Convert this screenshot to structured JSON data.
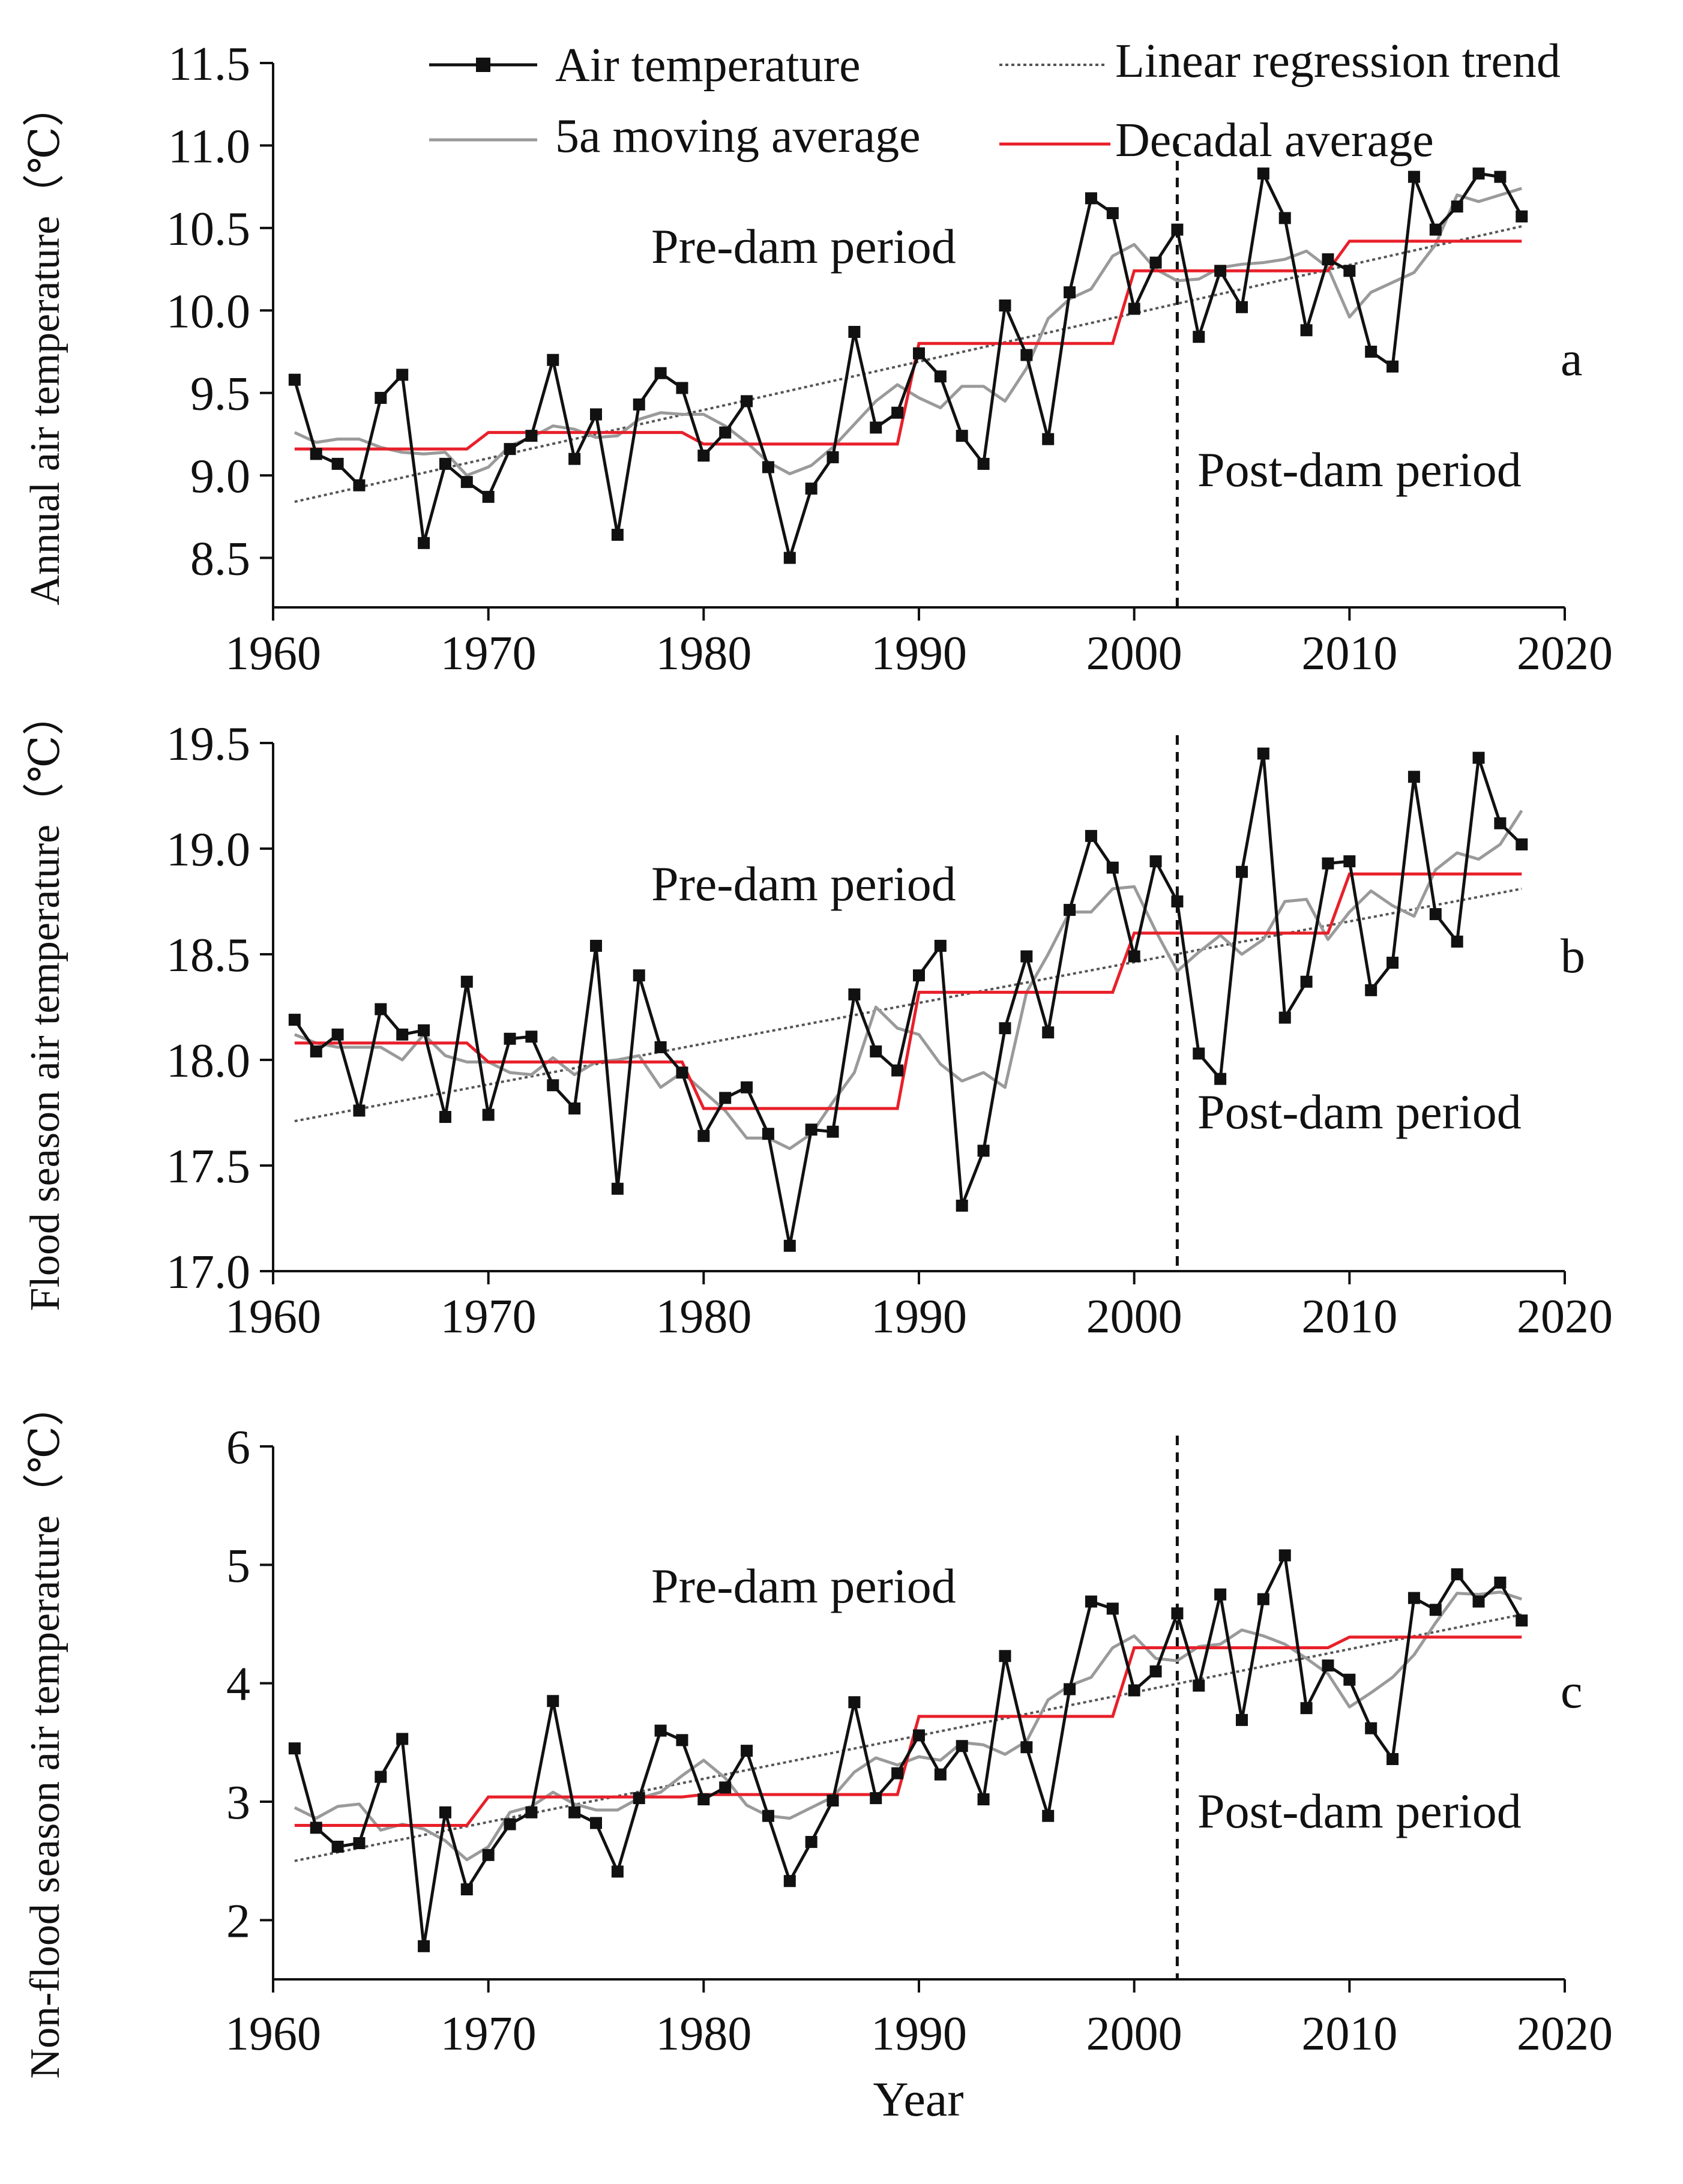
{
  "legend": {
    "items": [
      {
        "key": "air",
        "label": "Air temperature"
      },
      {
        "key": "moving",
        "label": "5a moving average"
      },
      {
        "key": "trend",
        "label": "Linear regression trend"
      },
      {
        "key": "decadal",
        "label": "Decadal average"
      }
    ]
  },
  "colors": {
    "air": "#111111",
    "moving": "#9a9a9a",
    "trend": "#555555",
    "decadal": "#e8202a",
    "axis": "#111111"
  },
  "chart_data": [
    {
      "type": "line",
      "panel": "a",
      "ylabel": "Annual air temperature（℃）",
      "xlabel": "",
      "xlim": [
        1960,
        2020
      ],
      "xticks": [
        1960,
        1970,
        1980,
        1990,
        2000,
        2010,
        2020
      ],
      "ylim": [
        8.2,
        11.5
      ],
      "yticks": [
        8.5,
        9.0,
        9.5,
        10.0,
        10.5,
        11.0,
        11.5
      ],
      "ytick_labels": [
        "8.5",
        "9.0",
        "9.5",
        "10.0",
        "10.5",
        "11.0",
        "11.5"
      ],
      "dam_year": 2002,
      "annotations": {
        "pre": "Pre-dam period",
        "post": "Post-dam period"
      },
      "x": [
        1961,
        1962,
        1963,
        1964,
        1965,
        1966,
        1967,
        1968,
        1969,
        1970,
        1971,
        1972,
        1973,
        1974,
        1975,
        1976,
        1977,
        1978,
        1979,
        1980,
        1981,
        1982,
        1983,
        1984,
        1985,
        1986,
        1987,
        1988,
        1989,
        1990,
        1991,
        1992,
        1993,
        1994,
        1995,
        1996,
        1997,
        1998,
        1999,
        2000,
        2001,
        2002,
        2003,
        2004,
        2005,
        2006,
        2007,
        2008,
        2009,
        2010,
        2011,
        2012,
        2013,
        2014,
        2015,
        2016,
        2017,
        2018
      ],
      "series": [
        {
          "name": "Air temperature",
          "values": [
            9.58,
            9.13,
            9.07,
            8.94,
            9.47,
            9.61,
            8.59,
            9.07,
            8.96,
            8.87,
            9.16,
            9.24,
            9.7,
            9.1,
            9.37,
            8.64,
            9.43,
            9.62,
            9.53,
            9.12,
            9.26,
            9.45,
            9.05,
            8.5,
            8.92,
            9.11,
            9.87,
            9.29,
            9.38,
            9.74,
            9.6,
            9.24,
            9.07,
            10.03,
            9.73,
            9.22,
            10.11,
            10.68,
            10.59,
            10.01,
            10.29,
            10.49,
            9.84,
            10.24,
            10.02,
            10.83,
            10.56,
            9.88,
            10.31,
            10.24,
            9.75,
            9.66,
            10.81,
            10.49,
            10.63,
            10.83,
            10.81,
            10.57
          ]
        },
        {
          "name": "5a moving average",
          "values": [
            9.26,
            9.2,
            9.22,
            9.22,
            9.17,
            9.14,
            9.13,
            9.14,
            9.0,
            9.05,
            9.18,
            9.23,
            9.3,
            9.28,
            9.23,
            9.24,
            9.34,
            9.38,
            9.37,
            9.37,
            9.3,
            9.2,
            9.08,
            9.01,
            9.06,
            9.17,
            9.31,
            9.45,
            9.55,
            9.47,
            9.41,
            9.54,
            9.54,
            9.45,
            9.65,
            9.95,
            10.07,
            10.13,
            10.33,
            10.4,
            10.25,
            10.18,
            10.19,
            10.26,
            10.28,
            10.29,
            10.31,
            10.36,
            10.26,
            9.96,
            10.11,
            10.17,
            10.23,
            10.4,
            10.7,
            10.66,
            10.7,
            10.74
          ]
        },
        {
          "name": "Linear regression trend",
          "values": [
            8.84,
            10.51
          ],
          "x": [
            1961,
            2018
          ]
        },
        {
          "name": "Decadal average",
          "x": [
            1961,
            1969,
            1970,
            1979,
            1980,
            1989,
            1990,
            1999,
            2000,
            2009,
            2010,
            2018
          ],
          "values": [
            9.16,
            9.16,
            9.26,
            9.26,
            9.19,
            9.19,
            9.8,
            9.8,
            10.24,
            10.24,
            10.42,
            10.42
          ]
        }
      ]
    },
    {
      "type": "line",
      "panel": "b",
      "ylabel": "Flood season air temperature（℃）",
      "xlabel": "",
      "xlim": [
        1960,
        2020
      ],
      "xticks": [
        1960,
        1970,
        1980,
        1990,
        2000,
        2010,
        2020
      ],
      "ylim": [
        17.0,
        19.5
      ],
      "yticks": [
        17.0,
        17.5,
        18.0,
        18.5,
        19.0,
        19.5
      ],
      "ytick_labels": [
        "17.0",
        "17.5",
        "18.0",
        "18.5",
        "19.0",
        "19.5"
      ],
      "dam_year": 2002,
      "annotations": {
        "pre": "Pre-dam period",
        "post": "Post-dam period"
      },
      "x": [
        1961,
        1962,
        1963,
        1964,
        1965,
        1966,
        1967,
        1968,
        1969,
        1970,
        1971,
        1972,
        1973,
        1974,
        1975,
        1976,
        1977,
        1978,
        1979,
        1980,
        1981,
        1982,
        1983,
        1984,
        1985,
        1986,
        1987,
        1988,
        1989,
        1990,
        1991,
        1992,
        1993,
        1994,
        1995,
        1996,
        1997,
        1998,
        1999,
        2000,
        2001,
        2002,
        2003,
        2004,
        2005,
        2006,
        2007,
        2008,
        2009,
        2010,
        2011,
        2012,
        2013,
        2014,
        2015,
        2016,
        2017,
        2018
      ],
      "series": [
        {
          "name": "Air temperature",
          "values": [
            18.19,
            18.04,
            18.12,
            17.76,
            18.24,
            18.12,
            18.14,
            17.73,
            18.37,
            17.74,
            18.1,
            18.11,
            17.88,
            17.77,
            18.54,
            17.39,
            18.4,
            18.06,
            17.94,
            17.64,
            17.82,
            17.87,
            17.65,
            17.12,
            17.67,
            17.66,
            18.31,
            18.04,
            17.95,
            18.4,
            18.54,
            17.31,
            17.57,
            18.15,
            18.49,
            18.13,
            18.71,
            19.06,
            18.91,
            18.49,
            18.94,
            18.75,
            18.03,
            17.91,
            18.89,
            19.45,
            18.2,
            18.37,
            18.93,
            18.94,
            18.33,
            18.46,
            19.34,
            18.69,
            18.56,
            19.43,
            19.12,
            19.02
          ]
        },
        {
          "name": "5a moving average",
          "values": [
            18.12,
            18.08,
            18.06,
            18.06,
            18.06,
            18.0,
            18.12,
            18.02,
            17.99,
            17.99,
            17.94,
            17.93,
            18.01,
            17.93,
            17.99,
            18.0,
            18.02,
            17.87,
            17.94,
            17.85,
            17.76,
            17.63,
            17.63,
            17.58,
            17.65,
            17.8,
            17.94,
            18.25,
            18.15,
            18.12,
            17.98,
            17.9,
            17.94,
            17.87,
            18.32,
            18.5,
            18.7,
            18.7,
            18.81,
            18.82,
            18.61,
            18.42,
            18.51,
            18.59,
            18.5,
            18.57,
            18.75,
            18.76,
            18.57,
            18.7,
            18.8,
            18.73,
            18.68,
            18.9,
            18.98,
            18.95,
            19.02,
            19.18
          ]
        },
        {
          "name": "Linear regression trend",
          "values": [
            17.71,
            18.81
          ],
          "x": [
            1961,
            2018
          ]
        },
        {
          "name": "Decadal average",
          "x": [
            1961,
            1969,
            1970,
            1979,
            1980,
            1989,
            1990,
            1999,
            2000,
            2009,
            2010,
            2018
          ],
          "values": [
            18.08,
            18.08,
            17.99,
            17.99,
            17.77,
            17.77,
            18.32,
            18.32,
            18.6,
            18.6,
            18.88,
            18.88
          ]
        }
      ]
    },
    {
      "type": "line",
      "panel": "c",
      "ylabel": "Non-flood season air temperature（℃）",
      "xlabel": "Year",
      "xlim": [
        1960,
        2020
      ],
      "xticks": [
        1960,
        1970,
        1980,
        1990,
        2000,
        2010,
        2020
      ],
      "ylim": [
        1.5,
        6.0
      ],
      "yticks": [
        2,
        3,
        4,
        5,
        6
      ],
      "ytick_labels": [
        "2",
        "3",
        "4",
        "5",
        "6"
      ],
      "dam_year": 2002,
      "annotations": {
        "pre": "Pre-dam period",
        "post": "Post-dam period"
      },
      "x": [
        1961,
        1962,
        1963,
        1964,
        1965,
        1966,
        1967,
        1968,
        1969,
        1970,
        1971,
        1972,
        1973,
        1974,
        1975,
        1976,
        1977,
        1978,
        1979,
        1980,
        1981,
        1982,
        1983,
        1984,
        1985,
        1986,
        1987,
        1988,
        1989,
        1990,
        1991,
        1992,
        1993,
        1994,
        1995,
        1996,
        1997,
        1998,
        1999,
        2000,
        2001,
        2002,
        2003,
        2004,
        2005,
        2006,
        2007,
        2008,
        2009,
        2010,
        2011,
        2012,
        2013,
        2014,
        2015,
        2016,
        2017,
        2018
      ],
      "series": [
        {
          "name": "Air temperature",
          "values": [
            3.45,
            2.78,
            2.62,
            2.65,
            3.21,
            3.53,
            1.78,
            2.91,
            2.26,
            2.55,
            2.81,
            2.91,
            3.85,
            2.91,
            2.82,
            2.41,
            3.03,
            3.6,
            3.52,
            3.02,
            3.12,
            3.43,
            2.88,
            2.33,
            2.66,
            3.01,
            3.84,
            3.03,
            3.24,
            3.56,
            3.23,
            3.47,
            3.02,
            4.23,
            3.46,
            2.88,
            3.95,
            4.69,
            4.63,
            3.94,
            4.1,
            4.59,
            3.98,
            4.75,
            3.69,
            4.71,
            5.08,
            3.79,
            4.15,
            4.03,
            3.62,
            3.36,
            4.72,
            4.62,
            4.92,
            4.69,
            4.85,
            4.53
          ]
        },
        {
          "name": "5a moving average",
          "values": [
            2.95,
            2.86,
            2.96,
            2.98,
            2.76,
            2.81,
            2.77,
            2.67,
            2.51,
            2.62,
            2.91,
            2.96,
            3.08,
            2.98,
            2.93,
            2.93,
            3.03,
            3.08,
            3.22,
            3.35,
            3.2,
            2.97,
            2.88,
            2.86,
            2.95,
            3.04,
            3.25,
            3.37,
            3.31,
            3.38,
            3.35,
            3.5,
            3.48,
            3.4,
            3.51,
            3.86,
            3.98,
            4.05,
            4.3,
            4.4,
            4.21,
            4.19,
            4.31,
            4.33,
            4.45,
            4.4,
            4.33,
            4.21,
            4.08,
            3.8,
            3.92,
            4.05,
            4.24,
            4.51,
            4.76,
            4.75,
            4.77,
            4.71
          ]
        },
        {
          "name": "Linear regression trend",
          "values": [
            2.5,
            4.58
          ],
          "x": [
            1961,
            2018
          ]
        },
        {
          "name": "Decadal average",
          "x": [
            1961,
            1969,
            1970,
            1979,
            1980,
            1989,
            1990,
            1999,
            2000,
            2009,
            2010,
            2018
          ],
          "values": [
            2.8,
            2.8,
            3.04,
            3.04,
            3.06,
            3.06,
            3.72,
            3.72,
            4.3,
            4.3,
            4.39,
            4.39
          ]
        }
      ]
    }
  ]
}
